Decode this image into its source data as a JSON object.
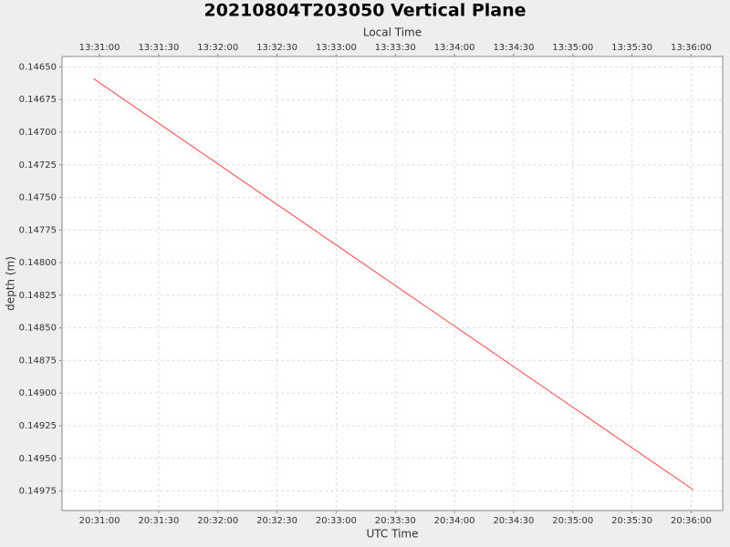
{
  "chart_data": {
    "type": "line",
    "title": "20210804T203050 Vertical Plane",
    "x_label": "UTC Time",
    "x2_label": "Local Time",
    "y_label": "depth (m)",
    "x": [
      "20:30:57",
      "20:36:01"
    ],
    "series": [
      {
        "name": "depth",
        "color": "#ff4444",
        "values": [
          0.14659,
          0.14974
        ]
      }
    ],
    "xlim": [
      "20:30:41",
      "20:36:16"
    ],
    "xticks": [
      "20:31:00",
      "20:31:30",
      "20:32:00",
      "20:32:30",
      "20:33:00",
      "20:33:30",
      "20:34:00",
      "20:34:30",
      "20:35:00",
      "20:35:30",
      "20:36:00"
    ],
    "x2lim": [
      "13:30:41",
      "13:36:16"
    ],
    "x2ticks": [
      "13:31:00",
      "13:31:30",
      "13:32:00",
      "13:32:30",
      "13:33:00",
      "13:33:30",
      "13:34:00",
      "13:34:30",
      "13:35:00",
      "13:35:30",
      "13:36:00"
    ],
    "ylim": [
      0.14642,
      0.1499
    ],
    "y_inverted": true,
    "yticks": [
      {
        "value": 0.1465,
        "label": "0.14650"
      },
      0.14675,
      {
        "value": 0.147,
        "label": "0.14700"
      },
      0.14725,
      {
        "value": 0.1475,
        "label": "0.14750"
      },
      0.14775,
      {
        "value": 0.148,
        "label": "0.14800"
      },
      0.14825,
      {
        "value": 0.1485,
        "label": "0.14850"
      },
      0.14875,
      {
        "value": 0.149,
        "label": "0.14900"
      },
      0.14925,
      {
        "value": 0.1495,
        "label": "0.14950"
      },
      0.14975
    ],
    "grid": true
  }
}
